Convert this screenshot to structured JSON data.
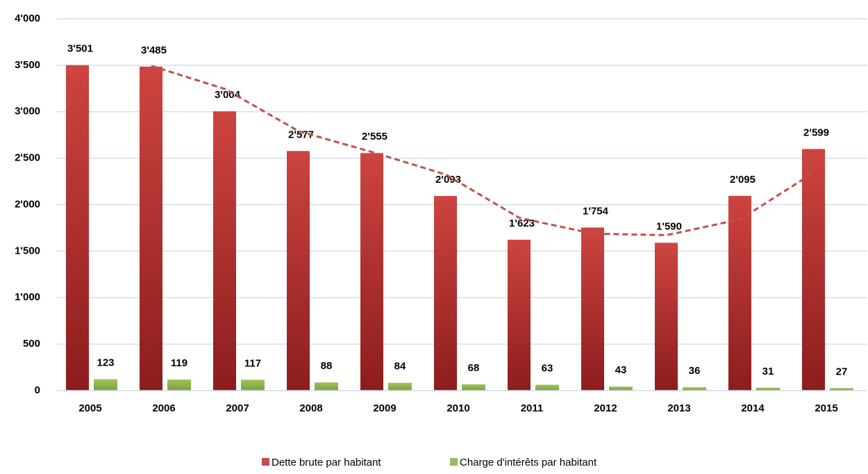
{
  "chart_data": {
    "type": "bar",
    "categories": [
      "2005",
      "2006",
      "2007",
      "2008",
      "2009",
      "2010",
      "2011",
      "2012",
      "2013",
      "2014",
      "2015"
    ],
    "series": [
      {
        "name": "Dette brute par habitant",
        "color": "#c0504d",
        "values": [
          3501,
          3485,
          3004,
          2577,
          2555,
          2093,
          1623,
          1754,
          1590,
          2095,
          2599
        ],
        "value_labels": [
          "3'501",
          "3'485",
          "3'004",
          "2'577",
          "2'555",
          "2'093",
          "1'623",
          "1'754",
          "1'590",
          "2'095",
          "2'599"
        ]
      },
      {
        "name": "Charge d'intérêts par habitant",
        "color": "#9bbb59",
        "values": [
          123,
          119,
          117,
          88,
          84,
          68,
          63,
          43,
          36,
          31,
          27
        ]
      }
    ],
    "trendline": {
      "color": "#c0504d",
      "dashed": true,
      "values": [
        null,
        3493,
        3244.5,
        2790.5,
        2566,
        2324,
        1858,
        1688.5,
        1672,
        1842.5,
        2347
      ]
    },
    "ylim": [
      0,
      4000
    ],
    "yticks": [
      0,
      500,
      {
        "value": 1000,
        "label": "1'000"
      },
      {
        "value": 1500,
        "label": "1'500"
      },
      {
        "value": 2000,
        "label": "2'000"
      },
      {
        "value": 2500,
        "label": "2'500"
      },
      {
        "value": 3000,
        "label": "3'000"
      },
      {
        "value": 3500,
        "label": "3'500"
      },
      {
        "value": 4000,
        "label": "4'000"
      }
    ],
    "grid": true,
    "legend": "bottom"
  }
}
